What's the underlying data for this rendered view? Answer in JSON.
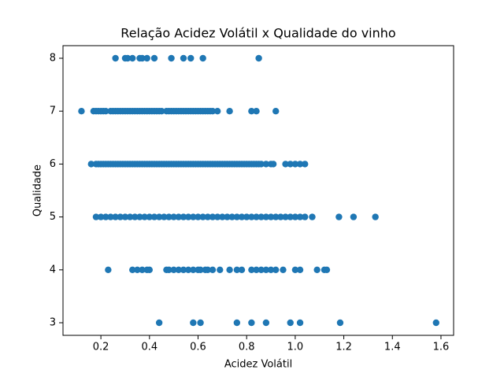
{
  "chart_data": {
    "type": "scatter",
    "title": "Relação Acidez Volátil x Qualidade do vinho",
    "xlabel": "Acidez Volátil",
    "ylabel": "Qualidade",
    "color": "#1f77b4",
    "xlim": [
      0.044,
      1.652
    ],
    "ylim": [
      2.762,
      8.238
    ],
    "xticks": [
      0.2,
      0.4,
      0.6,
      0.8,
      {
        "value": 1.0,
        "label": "1.0"
      },
      1.2,
      1.4,
      1.6
    ],
    "yticks": [
      3,
      4,
      5,
      6,
      7,
      8
    ],
    "x": [
      0.26,
      0.3,
      0.31,
      0.33,
      0.36,
      0.37,
      0.39,
      0.42,
      0.49,
      0.54,
      0.57,
      0.62,
      0.85,
      0.12,
      0.17,
      0.18,
      0.19,
      0.2,
      0.21,
      0.22,
      0.24,
      0.25,
      0.26,
      0.27,
      0.28,
      0.29,
      0.3,
      0.31,
      0.32,
      0.33,
      0.34,
      0.35,
      0.36,
      0.37,
      0.38,
      0.39,
      0.4,
      0.41,
      0.42,
      0.43,
      0.44,
      0.45,
      0.47,
      0.48,
      0.49,
      0.5,
      0.51,
      0.52,
      0.53,
      0.54,
      0.55,
      0.56,
      0.57,
      0.58,
      0.59,
      0.6,
      0.61,
      0.62,
      0.63,
      0.64,
      0.65,
      0.66,
      0.68,
      0.73,
      0.82,
      0.84,
      0.92,
      0.16,
      0.18,
      0.19,
      0.2,
      0.21,
      0.22,
      0.23,
      0.24,
      0.25,
      0.26,
      0.27,
      0.28,
      0.29,
      0.3,
      0.31,
      0.32,
      0.33,
      0.34,
      0.35,
      0.36,
      0.37,
      0.38,
      0.39,
      0.4,
      0.41,
      0.42,
      0.43,
      0.44,
      0.45,
      0.46,
      0.47,
      0.48,
      0.49,
      0.5,
      0.51,
      0.52,
      0.53,
      0.54,
      0.55,
      0.56,
      0.57,
      0.58,
      0.59,
      0.6,
      0.61,
      0.62,
      0.63,
      0.64,
      0.65,
      0.66,
      0.67,
      0.68,
      0.69,
      0.7,
      0.71,
      0.72,
      0.73,
      0.74,
      0.75,
      0.76,
      0.77,
      0.78,
      0.79,
      0.8,
      0.81,
      0.82,
      0.83,
      0.84,
      0.85,
      0.86,
      0.88,
      0.9,
      0.91,
      0.96,
      0.98,
      1.0,
      1.02,
      1.04,
      0.18,
      0.2,
      0.22,
      0.24,
      0.26,
      0.28,
      0.3,
      0.32,
      0.34,
      0.36,
      0.38,
      0.4,
      0.42,
      0.44,
      0.46,
      0.48,
      0.5,
      0.52,
      0.54,
      0.56,
      0.58,
      0.6,
      0.62,
      0.64,
      0.66,
      0.68,
      0.7,
      0.72,
      0.74,
      0.76,
      0.78,
      0.8,
      0.82,
      0.84,
      0.86,
      0.88,
      0.9,
      0.92,
      0.94,
      0.96,
      0.98,
      1.0,
      1.02,
      1.04,
      1.07,
      1.18,
      1.24,
      1.33,
      0.23,
      0.33,
      0.35,
      0.37,
      0.39,
      0.4,
      0.47,
      0.48,
      0.5,
      0.52,
      0.54,
      0.56,
      0.58,
      0.6,
      0.61,
      0.63,
      0.64,
      0.66,
      0.69,
      0.73,
      0.76,
      0.78,
      0.82,
      0.84,
      0.86,
      0.88,
      0.9,
      0.92,
      0.95,
      1.0,
      1.02,
      1.09,
      1.12,
      1.13,
      0.44,
      0.58,
      0.61,
      0.76,
      0.82,
      0.88,
      0.98,
      1.02,
      1.185,
      1.58
    ],
    "values": [
      8,
      8,
      8,
      8,
      8,
      8,
      8,
      8,
      8,
      8,
      8,
      8,
      8,
      7,
      7,
      7,
      7,
      7,
      7,
      7,
      7,
      7,
      7,
      7,
      7,
      7,
      7,
      7,
      7,
      7,
      7,
      7,
      7,
      7,
      7,
      7,
      7,
      7,
      7,
      7,
      7,
      7,
      7,
      7,
      7,
      7,
      7,
      7,
      7,
      7,
      7,
      7,
      7,
      7,
      7,
      7,
      7,
      7,
      7,
      7,
      7,
      7,
      7,
      7,
      7,
      7,
      7,
      6,
      6,
      6,
      6,
      6,
      6,
      6,
      6,
      6,
      6,
      6,
      6,
      6,
      6,
      6,
      6,
      6,
      6,
      6,
      6,
      6,
      6,
      6,
      6,
      6,
      6,
      6,
      6,
      6,
      6,
      6,
      6,
      6,
      6,
      6,
      6,
      6,
      6,
      6,
      6,
      6,
      6,
      6,
      6,
      6,
      6,
      6,
      6,
      6,
      6,
      6,
      6,
      6,
      6,
      6,
      6,
      6,
      6,
      6,
      6,
      6,
      6,
      6,
      6,
      6,
      6,
      6,
      6,
      6,
      6,
      6,
      6,
      6,
      6,
      6,
      6,
      6,
      6,
      5,
      5,
      5,
      5,
      5,
      5,
      5,
      5,
      5,
      5,
      5,
      5,
      5,
      5,
      5,
      5,
      5,
      5,
      5,
      5,
      5,
      5,
      5,
      5,
      5,
      5,
      5,
      5,
      5,
      5,
      5,
      5,
      5,
      5,
      5,
      5,
      5,
      5,
      5,
      5,
      5,
      5,
      5,
      5,
      5,
      5,
      5,
      5,
      4,
      4,
      4,
      4,
      4,
      4,
      4,
      4,
      4,
      4,
      4,
      4,
      4,
      4,
      4,
      4,
      4,
      4,
      4,
      4,
      4,
      4,
      4,
      4,
      4,
      4,
      4,
      4,
      4,
      4,
      4,
      4,
      4,
      4,
      3,
      3,
      3,
      3,
      3,
      3,
      3,
      3,
      3,
      3
    ]
  }
}
